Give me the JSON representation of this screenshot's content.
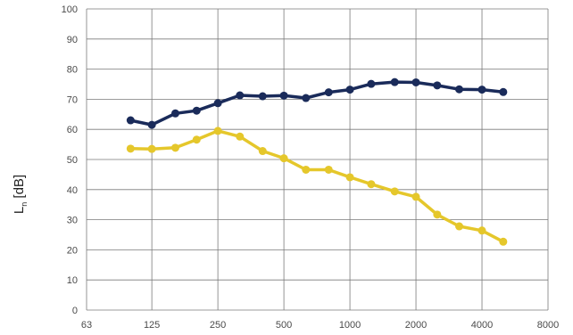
{
  "chart_data": {
    "type": "line",
    "xscale": "log",
    "x_ticks": [
      63,
      125,
      250,
      500,
      1000,
      2000,
      4000,
      8000
    ],
    "y_ticks": [
      0,
      10,
      20,
      30,
      40,
      50,
      60,
      70,
      80,
      90,
      100
    ],
    "xlim": [
      63,
      8000
    ],
    "ylim": [
      0,
      100
    ],
    "grid": true,
    "ylabel": {
      "main": "L",
      "sub": "n",
      "unit": " [dB]"
    },
    "xlabel": "",
    "title": "",
    "x": [
      100,
      125,
      160,
      200,
      250,
      315,
      400,
      500,
      630,
      800,
      1000,
      1250,
      1600,
      2000,
      2500,
      3150,
      4000,
      5000
    ],
    "series": [
      {
        "color": "#1a2b5a",
        "values": [
          63.0,
          61.5,
          65.3,
          66.2,
          68.7,
          71.3,
          71.0,
          71.2,
          70.4,
          72.3,
          73.2,
          75.1,
          75.7,
          75.6,
          74.6,
          73.3,
          73.2,
          72.4
        ]
      },
      {
        "color": "#e5c72b",
        "values": [
          53.6,
          53.5,
          53.9,
          56.6,
          59.5,
          57.6,
          52.8,
          50.4,
          46.6,
          46.6,
          44.1,
          41.8,
          39.4,
          37.6,
          31.7,
          27.8,
          26.4,
          22.7
        ]
      }
    ]
  },
  "colors": {
    "grid": "#7a7a7a",
    "tick_text": "#4a4a4a"
  }
}
